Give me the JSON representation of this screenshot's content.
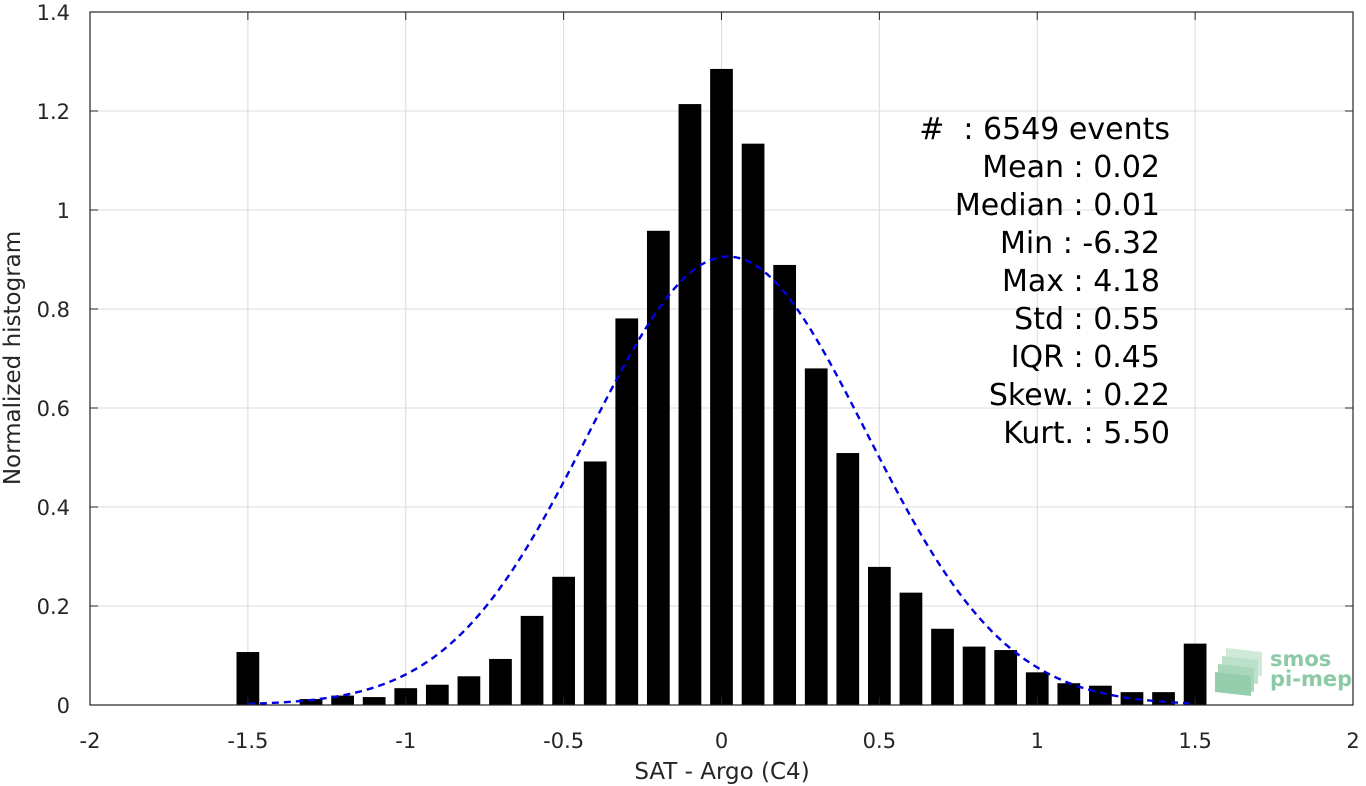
{
  "chart_data": {
    "type": "bar",
    "xlabel": "SAT - Argo (C4)",
    "ylabel": "Normalized histogram",
    "xlim": [
      -2,
      2
    ],
    "ylim": [
      0,
      1.4
    ],
    "xticks": [
      -2,
      -1.5,
      -1,
      -0.5,
      0,
      0.5,
      1,
      1.5,
      2
    ],
    "xtick_labels": [
      "-2",
      "-1.5",
      "-1",
      "-0.5",
      "0",
      "0.5",
      "1",
      "1.5",
      "2"
    ],
    "yticks": [
      0,
      0.2,
      0.4,
      0.6,
      0.8,
      1,
      1.2,
      1.4
    ],
    "ytick_labels": [
      "0",
      "0.2",
      "0.4",
      "0.6",
      "0.8",
      "1",
      "1.2",
      "1.4"
    ],
    "grid": true,
    "bar_color": "#000000",
    "x": [
      -1.5,
      -1.4,
      -1.3,
      -1.2,
      -1.1,
      -1.0,
      -0.9,
      -0.8,
      -0.7,
      -0.6,
      -0.5,
      -0.4,
      -0.3,
      -0.2,
      -0.1,
      0.0,
      0.1,
      0.2,
      0.3,
      0.4,
      0.5,
      0.6,
      0.7,
      0.8,
      0.9,
      1.0,
      1.1,
      1.2,
      1.3,
      1.4,
      1.5
    ],
    "values": [
      0.107,
      0.0,
      0.012,
      0.019,
      0.016,
      0.034,
      0.041,
      0.058,
      0.093,
      0.18,
      0.259,
      0.492,
      0.781,
      0.958,
      1.214,
      1.285,
      1.134,
      0.889,
      0.68,
      0.509,
      0.279,
      0.227,
      0.154,
      0.118,
      0.111,
      0.066,
      0.044,
      0.039,
      0.026,
      0.026,
      0.124
    ],
    "fit_curve": {
      "style": "dashed",
      "color": "#0000e0",
      "mean": 0.02,
      "std": 0.44,
      "peak": 0.906,
      "x_range": [
        -1.5,
        1.5
      ]
    },
    "annotations": [
      "#  : 6549 events",
      "Mean : 0.02",
      "Median : 0.01",
      "Min : -6.32",
      "Max : 4.18",
      "Std : 0.55",
      "IQR : 0.45",
      "Skew. : 0.22",
      "Kurt. : 5.50"
    ]
  },
  "logo": {
    "line1": "smos",
    "line2": "pi-mep",
    "color": "#8ccaa6"
  }
}
